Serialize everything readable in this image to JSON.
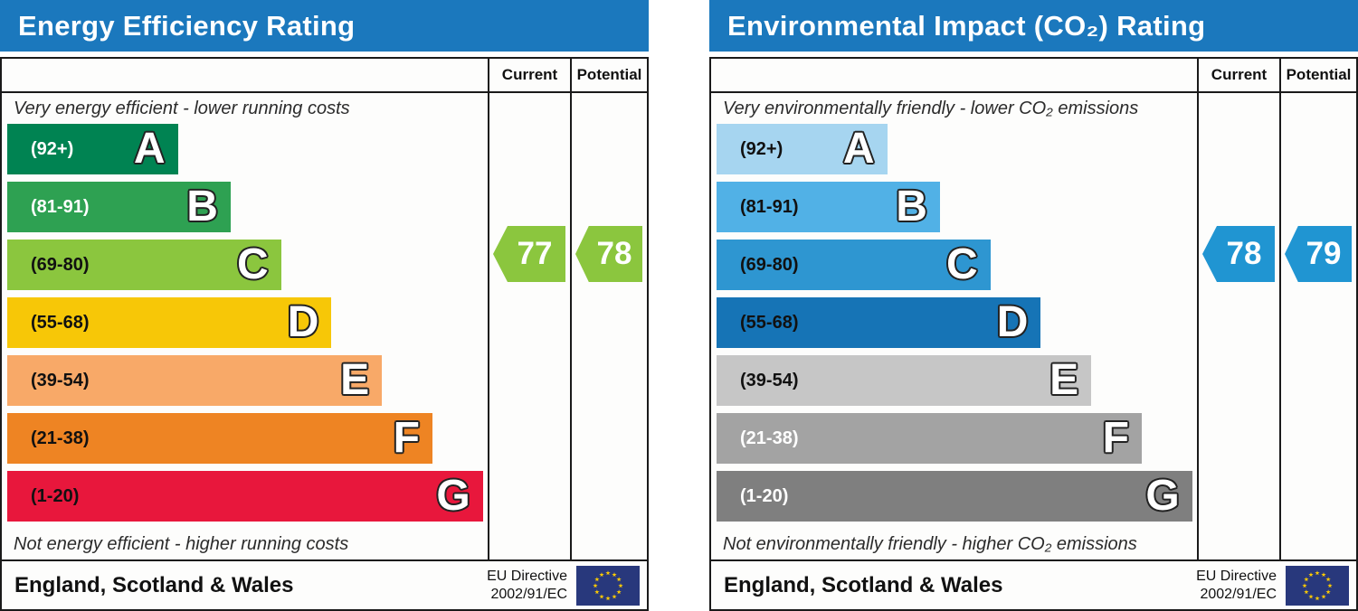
{
  "charts": [
    {
      "title": "Energy Efficiency Rating",
      "header_color": "#1b78bd",
      "columns": {
        "current": "Current",
        "potential": "Potential"
      },
      "top_label": "Very energy efficient - lower running costs",
      "bottom_label": "Not energy efficient - higher running costs",
      "bands": [
        {
          "letter": "A",
          "range": "(92+)",
          "color": "#008352",
          "label_color": "#ffffff",
          "width_pct": 35.5
        },
        {
          "letter": "B",
          "range": "(81-91)",
          "color": "#2ea152",
          "label_color": "#ffffff",
          "width_pct": 46.5
        },
        {
          "letter": "C",
          "range": "(69-80)",
          "color": "#8bc63e",
          "label_color": "#111111",
          "width_pct": 57
        },
        {
          "letter": "D",
          "range": "(55-68)",
          "color": "#f7c707",
          "label_color": "#111111",
          "width_pct": 67.5
        },
        {
          "letter": "E",
          "range": "(39-54)",
          "color": "#f8a968",
          "label_color": "#111111",
          "width_pct": 78
        },
        {
          "letter": "F",
          "range": "(21-38)",
          "color": "#ee8423",
          "label_color": "#111111",
          "width_pct": 88.5
        },
        {
          "letter": "G",
          "range": "(1-20)",
          "color": "#e8173c",
          "label_color": "#111111",
          "width_pct": 99
        }
      ],
      "current": {
        "value": "77",
        "color": "#8bc63e"
      },
      "potential": {
        "value": "78",
        "color": "#8bc63e"
      },
      "footer": {
        "region": "England, Scotland & Wales",
        "directive_line1": "EU Directive",
        "directive_line2": "2002/91/EC"
      }
    },
    {
      "title": "Environmental Impact (CO₂) Rating",
      "header_color": "#1b78bd",
      "columns": {
        "current": "Current",
        "potential": "Potential"
      },
      "top_label": "Very environmentally friendly - lower CO₂ emissions",
      "bottom_label": "Not environmentally friendly - higher CO₂ emissions",
      "bands": [
        {
          "letter": "A",
          "range": "(92+)",
          "color": "#a6d5f0",
          "label_color": "#111111",
          "width_pct": 35.5
        },
        {
          "letter": "B",
          "range": "(81-91)",
          "color": "#51b1e6",
          "label_color": "#111111",
          "width_pct": 46.5
        },
        {
          "letter": "C",
          "range": "(69-80)",
          "color": "#2e96d1",
          "label_color": "#111111",
          "width_pct": 57
        },
        {
          "letter": "D",
          "range": "(55-68)",
          "color": "#1674b6",
          "label_color": "#111111",
          "width_pct": 67.5
        },
        {
          "letter": "E",
          "range": "(39-54)",
          "color": "#c6c6c6",
          "label_color": "#111111",
          "width_pct": 78
        },
        {
          "letter": "F",
          "range": "(21-38)",
          "color": "#a3a3a3",
          "label_color": "#ffffff",
          "width_pct": 88.5
        },
        {
          "letter": "G",
          "range": "(1-20)",
          "color": "#7f7f7f",
          "label_color": "#ffffff",
          "width_pct": 99
        }
      ],
      "current": {
        "value": "78",
        "color": "#2095d2"
      },
      "potential": {
        "value": "79",
        "color": "#2095d2"
      },
      "footer": {
        "region": "England, Scotland & Wales",
        "directive_line1": "EU Directive",
        "directive_line2": "2002/91/EC"
      }
    }
  ],
  "chart_data": [
    {
      "type": "bar",
      "title": "Energy Efficiency Rating",
      "categories": [
        "A (92+)",
        "B (81-91)",
        "C (69-80)",
        "D (55-68)",
        "E (39-54)",
        "F (21-38)",
        "G (1-20)"
      ],
      "band_colors": [
        "#008352",
        "#2ea152",
        "#8bc63e",
        "#f7c707",
        "#f8a968",
        "#ee8423",
        "#e8173c"
      ],
      "series": [
        {
          "name": "Current",
          "values": [
            77
          ],
          "band": "C"
        },
        {
          "name": "Potential",
          "values": [
            78
          ],
          "band": "C"
        }
      ],
      "top_annotation": "Very energy efficient - lower running costs",
      "bottom_annotation": "Not energy efficient - higher running costs",
      "footer": "England, Scotland & Wales — EU Directive 2002/91/EC",
      "value_range": [
        1,
        100
      ],
      "legend_position": "top-right columns"
    },
    {
      "type": "bar",
      "title": "Environmental Impact (CO₂) Rating",
      "categories": [
        "A (92+)",
        "B (81-91)",
        "C (69-80)",
        "D (55-68)",
        "E (39-54)",
        "F (21-38)",
        "G (1-20)"
      ],
      "band_colors": [
        "#a6d5f0",
        "#51b1e6",
        "#2e96d1",
        "#1674b6",
        "#c6c6c6",
        "#a3a3a3",
        "#7f7f7f"
      ],
      "series": [
        {
          "name": "Current",
          "values": [
            78
          ],
          "band": "C"
        },
        {
          "name": "Potential",
          "values": [
            79
          ],
          "band": "C"
        }
      ],
      "top_annotation": "Very environmentally friendly - lower CO₂ emissions",
      "bottom_annotation": "Not environmentally friendly - higher CO₂ emissions",
      "footer": "England, Scotland & Wales — EU Directive 2002/91/EC",
      "value_range": [
        1,
        100
      ],
      "legend_position": "top-right columns"
    }
  ]
}
